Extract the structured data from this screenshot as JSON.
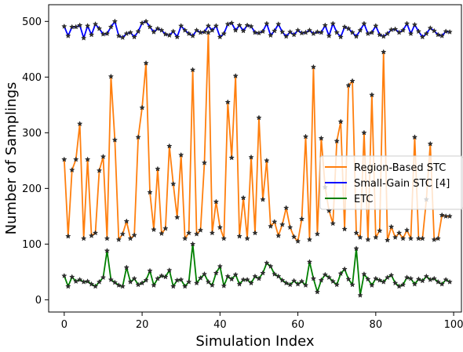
{
  "chart_data": {
    "type": "line",
    "title": "",
    "xlabel": "Simulation Index",
    "ylabel": "Number of Samplings",
    "xlim": [
      -4,
      102
    ],
    "ylim": [
      -22,
      530
    ],
    "x_ticks": [
      0,
      20,
      40,
      60,
      80,
      100
    ],
    "y_ticks": [
      0,
      100,
      200,
      300,
      400,
      500
    ],
    "grid": false,
    "legend_position": "center-right",
    "x": [
      0,
      1,
      2,
      3,
      4,
      5,
      6,
      7,
      8,
      9,
      10,
      11,
      12,
      13,
      14,
      15,
      16,
      17,
      18,
      19,
      20,
      21,
      22,
      23,
      24,
      25,
      26,
      27,
      28,
      29,
      30,
      31,
      32,
      33,
      34,
      35,
      36,
      37,
      38,
      39,
      40,
      41,
      42,
      43,
      44,
      45,
      46,
      47,
      48,
      49,
      50,
      51,
      52,
      53,
      54,
      55,
      56,
      57,
      58,
      59,
      60,
      61,
      62,
      63,
      64,
      65,
      66,
      67,
      68,
      69,
      70,
      71,
      72,
      73,
      74,
      75,
      76,
      77,
      78,
      79,
      80,
      81,
      82,
      83,
      84,
      85,
      86,
      87,
      88,
      89,
      90,
      91,
      92,
      93,
      94,
      95,
      96,
      97,
      98,
      99
    ],
    "series": [
      {
        "name": "Region-Based STC",
        "color": "#ff7f0e",
        "values": [
          252,
          114,
          233,
          252,
          316,
          110,
          252,
          115,
          120,
          232,
          257,
          110,
          401,
          287,
          108,
          118,
          141,
          110,
          116,
          292,
          345,
          425,
          193,
          126,
          235,
          119,
          128,
          276,
          208,
          148,
          260,
          110,
          120,
          413,
          118,
          125,
          246,
          480,
          120,
          176,
          130,
          110,
          355,
          255,
          402,
          114,
          183,
          110,
          256,
          120,
          327,
          180,
          250,
          132,
          140,
          115,
          135,
          165,
          130,
          113,
          105,
          145,
          293,
          108,
          418,
          118,
          290,
          202,
          160,
          137,
          285,
          320,
          127,
          385,
          393,
          120,
          112,
          300,
          108,
          368,
          112,
          124,
          445,
          107,
          131,
          112,
          120,
          110,
          125,
          110,
          292,
          110,
          110,
          180,
          280,
          108,
          110,
          152,
          150,
          150
        ]
      },
      {
        "name": "Small-Gain STC [4]",
        "color": "#0000ff",
        "values": [
          491,
          474,
          490,
          490,
          493,
          470,
          492,
          476,
          495,
          487,
          477,
          478,
          490,
          500,
          474,
          471,
          478,
          480,
          472,
          482,
          497,
          500,
          490,
          481,
          487,
          484,
          477,
          475,
          482,
          472,
          492,
          484,
          478,
          474,
          484,
          480,
          481,
          492,
          484,
          492,
          472,
          478,
          495,
          497,
          484,
          493,
          483,
          493,
          491,
          480,
          479,
          482,
          496,
          475,
          483,
          495,
          481,
          473,
          481,
          476,
          484,
          479,
          480,
          484,
          478,
          481,
          480,
          493,
          474,
          496,
          480,
          472,
          490,
          487,
          480,
          473,
          484,
          496,
          478,
          480,
          492,
          476,
          473,
          478,
          485,
          486,
          480,
          484,
          496,
          478,
          494,
          482,
          472,
          478,
          488,
          483,
          476,
          474,
          482,
          481
        ]
      },
      {
        "name": "ETC",
        "color": "#008000",
        "values": [
          43,
          24,
          41,
          33,
          36,
          32,
          33,
          28,
          24,
          32,
          40,
          88,
          36,
          31,
          26,
          24,
          58,
          32,
          38,
          27,
          30,
          35,
          52,
          26,
          38,
          43,
          41,
          53,
          24,
          35,
          36,
          24,
          32,
          100,
          30,
          39,
          46,
          32,
          26,
          48,
          60,
          25,
          42,
          37,
          45,
          28,
          36,
          36,
          30,
          42,
          38,
          48,
          66,
          60,
          46,
          42,
          35,
          30,
          27,
          34,
          28,
          33,
          26,
          68,
          38,
          14,
          35,
          45,
          40,
          33,
          27,
          47,
          55,
          37,
          27,
          92,
          8,
          46,
          37,
          26,
          38,
          35,
          32,
          40,
          44,
          30,
          24,
          27,
          40,
          38,
          28,
          37,
          34,
          42,
          36,
          38,
          32,
          28,
          36,
          32
        ]
      }
    ]
  }
}
